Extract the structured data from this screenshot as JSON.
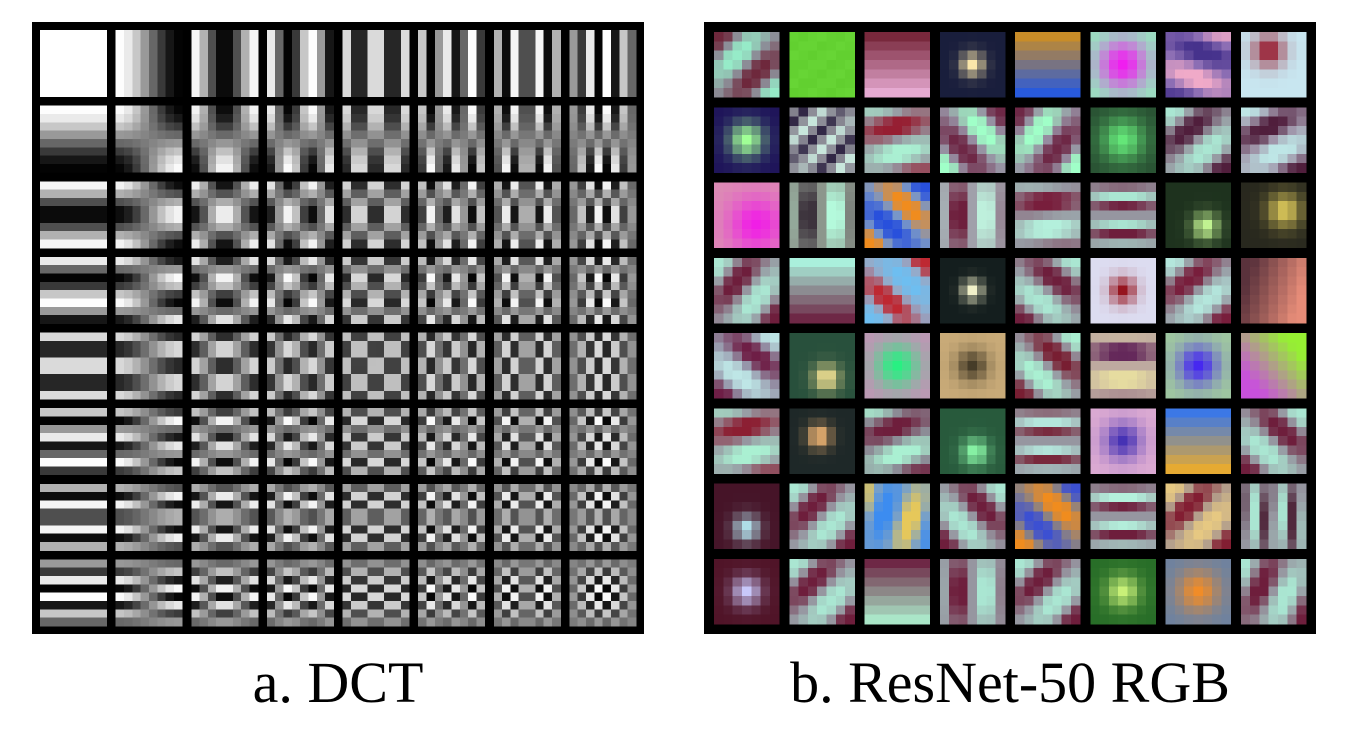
{
  "figure": {
    "panel_a": {
      "caption": "a. DCT",
      "grid": {
        "rows": 8,
        "cols": 8,
        "pixels_per_tile": 8
      }
    },
    "panel_b": {
      "caption": "b. ResNet-50 RGB",
      "grid": {
        "rows": 8,
        "cols": 8,
        "pixels_per_tile": 7
      }
    }
  },
  "colors": {
    "frame": "#000000",
    "background": "#ffffff",
    "caption_text": "#000000"
  }
}
